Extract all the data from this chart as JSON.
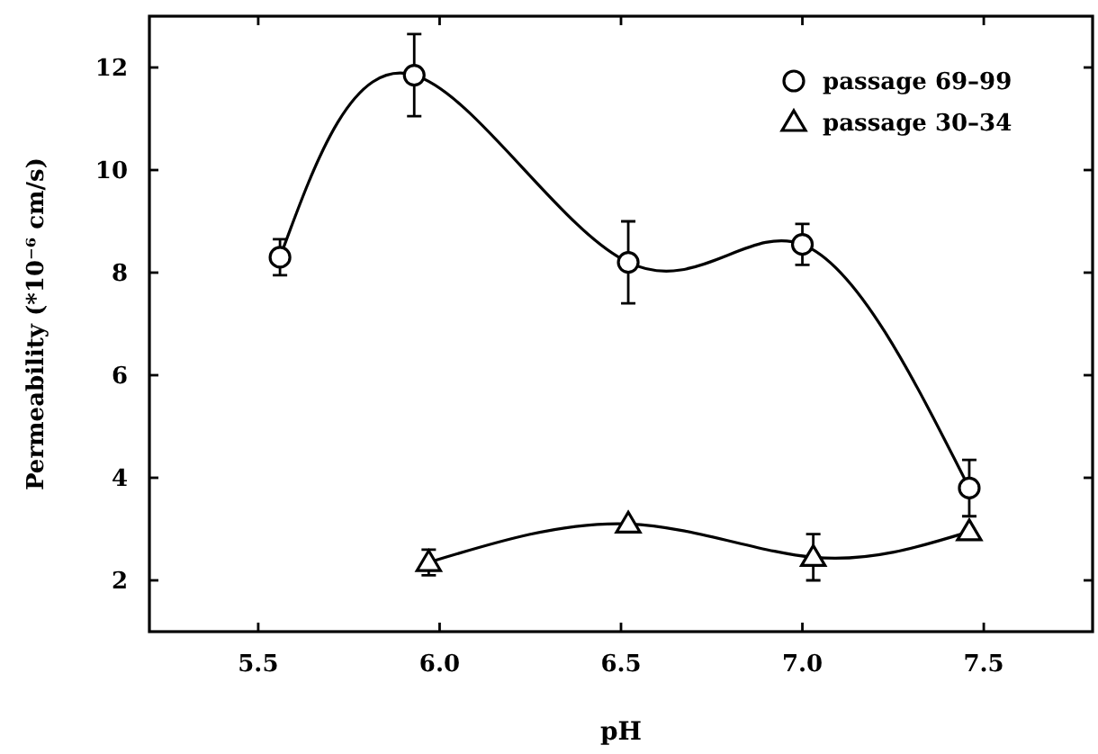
{
  "chart_data": {
    "type": "line",
    "xlabel": "pH",
    "ylabel": "Permeability (*10⁻⁶ cm/s)",
    "xlim": [
      5.2,
      7.8
    ],
    "ylim": [
      1,
      13
    ],
    "xticks": [
      {
        "value": 5.5,
        "label": "5.5"
      },
      {
        "value": 6,
        "label": "6.0"
      },
      {
        "value": 6.5,
        "label": "6.5"
      },
      {
        "value": 7,
        "label": "7.0"
      },
      {
        "value": 7.5,
        "label": "7.5"
      }
    ],
    "yticks": [
      2,
      4,
      6,
      8,
      10,
      12
    ],
    "grid": false,
    "legend": "top right",
    "line_style": "solid",
    "series": [
      {
        "name": "passage 69–99",
        "color": "#000000",
        "marker": "circle",
        "x": [
          5.56,
          5.93,
          6.52,
          7.0,
          7.46
        ],
        "values": [
          8.3,
          11.85,
          8.2,
          8.55,
          3.8
        ],
        "errors": [
          0.35,
          0.8,
          0.8,
          0.4,
          0.55
        ]
      },
      {
        "name": "passage 30–34",
        "color": "#000000",
        "marker": "triangle",
        "x": [
          5.97,
          6.52,
          7.03,
          7.46
        ],
        "values": [
          2.35,
          3.1,
          2.45,
          2.95
        ],
        "errors": [
          0.25,
          null,
          0.45,
          null
        ]
      }
    ]
  }
}
